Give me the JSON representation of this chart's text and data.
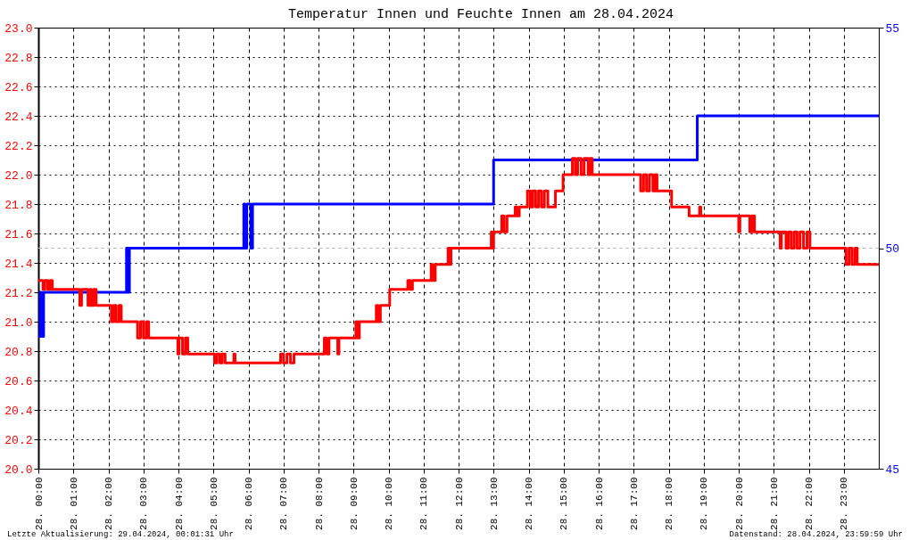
{
  "chart_data": {
    "type": "step",
    "title": "Temperatur Innen und Feuchte Innen am 28.04.2024",
    "series": [
      {
        "color": "#ff0000",
        "x": [
          "2024-04-28T00:00",
          "2024-04-28T00:08",
          "2024-04-28T00:11",
          "2024-04-28T00:16",
          "2024-04-28T00:20",
          "2024-04-28T00:24",
          "2024-04-28T01:11",
          "2024-04-28T01:14",
          "2024-04-28T01:25",
          "2024-04-28T01:28",
          "2024-04-28T01:31",
          "2024-04-28T01:35",
          "2024-04-28T01:39",
          "2024-04-28T02:05",
          "2024-04-28T02:09",
          "2024-04-28T02:13",
          "2024-04-28T02:18",
          "2024-04-28T02:22",
          "2024-04-28T02:50",
          "2024-04-28T02:55",
          "2024-04-28T03:00",
          "2024-04-28T03:05",
          "2024-04-28T03:09",
          "2024-04-28T03:59",
          "2024-04-28T04:01",
          "2024-04-28T04:07",
          "2024-04-28T04:12",
          "2024-04-28T04:16",
          "2024-04-28T05:02",
          "2024-04-28T05:06",
          "2024-04-28T05:11",
          "2024-04-28T05:15",
          "2024-04-28T05:20",
          "2024-04-28T05:35",
          "2024-04-28T05:37",
          "2024-04-28T06:55",
          "2024-04-28T07:00",
          "2024-04-28T07:06",
          "2024-04-28T07:12",
          "2024-04-28T07:18",
          "2024-04-28T08:10",
          "2024-04-28T08:14",
          "2024-04-28T08:18",
          "2024-04-28T08:33",
          "2024-04-28T08:35",
          "2024-04-28T09:04",
          "2024-04-28T09:07",
          "2024-04-28T09:10",
          "2024-04-28T09:39",
          "2024-04-28T09:42",
          "2024-04-28T09:46",
          "2024-04-28T10:02",
          "2024-04-28T10:33",
          "2024-04-28T10:37",
          "2024-04-28T10:41",
          "2024-04-28T11:13",
          "2024-04-28T11:16",
          "2024-04-28T11:20",
          "2024-04-28T11:42",
          "2024-04-28T11:45",
          "2024-04-28T11:47",
          "2024-04-28T12:56",
          "2024-04-28T12:58",
          "2024-04-28T13:00",
          "2024-04-28T13:14",
          "2024-04-28T13:18",
          "2024-04-28T13:23",
          "2024-04-28T13:37",
          "2024-04-28T13:40",
          "2024-04-28T13:44",
          "2024-04-28T13:58",
          "2024-04-28T14:03",
          "2024-04-28T14:07",
          "2024-04-28T14:12",
          "2024-04-28T14:17",
          "2024-04-28T14:22",
          "2024-04-28T14:27",
          "2024-04-28T14:33",
          "2024-04-28T14:46",
          "2024-04-28T14:59",
          "2024-04-28T15:15",
          "2024-04-28T15:20",
          "2024-04-28T15:24",
          "2024-04-28T15:30",
          "2024-04-28T15:35",
          "2024-04-28T15:42",
          "2024-04-28T15:45",
          "2024-04-28T15:49",
          "2024-04-28T17:12",
          "2024-04-28T17:17",
          "2024-04-28T17:22",
          "2024-04-28T17:27",
          "2024-04-28T17:33",
          "2024-04-28T17:37",
          "2024-04-28T17:40",
          "2024-04-28T18:05",
          "2024-04-28T18:35",
          "2024-04-28T18:53",
          "2024-04-28T18:55",
          "2024-04-28T20:00",
          "2024-04-28T20:02",
          "2024-04-28T20:19",
          "2024-04-28T20:23",
          "2024-04-28T20:27",
          "2024-04-28T21:11",
          "2024-04-28T21:13",
          "2024-04-28T21:21",
          "2024-04-28T21:25",
          "2024-04-28T21:30",
          "2024-04-28T21:35",
          "2024-04-28T21:40",
          "2024-04-28T21:45",
          "2024-04-28T21:51",
          "2024-04-28T21:57",
          "2024-04-28T22:02",
          "2024-04-28T23:04",
          "2024-04-28T23:09",
          "2024-04-28T23:14",
          "2024-04-28T23:19",
          "2024-04-28T23:23",
          "2024-04-29T00:00"
        ],
        "values": [
          21.28,
          21.22,
          21.28,
          21.22,
          21.28,
          21.22,
          21.11,
          21.22,
          21.11,
          21.22,
          21.11,
          21.22,
          21.11,
          21.0,
          21.11,
          21.0,
          21.11,
          21.0,
          20.89,
          21.0,
          20.89,
          21.0,
          20.89,
          20.78,
          20.89,
          20.78,
          20.89,
          20.78,
          20.72,
          20.78,
          20.72,
          20.78,
          20.72,
          20.78,
          20.72,
          20.78,
          20.72,
          20.78,
          20.72,
          20.78,
          20.89,
          20.78,
          20.89,
          20.78,
          20.89,
          21.0,
          20.89,
          21.0,
          21.11,
          21.0,
          21.11,
          21.22,
          21.28,
          21.22,
          21.28,
          21.39,
          21.28,
          21.39,
          21.5,
          21.39,
          21.5,
          21.61,
          21.5,
          21.61,
          21.72,
          21.61,
          21.72,
          21.78,
          21.72,
          21.78,
          21.89,
          21.78,
          21.89,
          21.78,
          21.89,
          21.78,
          21.89,
          21.78,
          21.89,
          22.0,
          22.11,
          22.0,
          22.11,
          22.0,
          22.11,
          22.0,
          22.11,
          22.0,
          21.89,
          22.0,
          21.89,
          22.0,
          21.89,
          22.0,
          21.89,
          21.78,
          21.72,
          21.78,
          21.72,
          21.61,
          21.72,
          21.61,
          21.72,
          21.61,
          21.5,
          21.61,
          21.5,
          21.61,
          21.5,
          21.61,
          21.5,
          21.61,
          21.5,
          21.61,
          21.5,
          21.39,
          21.5,
          21.39,
          21.5,
          21.39,
          21.39
        ]
      },
      {
        "color": "#0000ff",
        "axis": "y2",
        "x": [
          "2024-04-28T00:00",
          "2024-04-28T00:03",
          "2024-04-28T00:06",
          "2024-04-28T00:09",
          "2024-04-28T02:31",
          "2024-04-28T02:34",
          "2024-04-28T02:36",
          "2024-04-28T05:52",
          "2024-04-28T05:54",
          "2024-04-28T05:57",
          "2024-04-28T06:04",
          "2024-04-28T06:07",
          "2024-04-28T13:00",
          "2024-04-28T18:49",
          "2024-04-29T00:00"
        ],
        "values": [
          48,
          49,
          48,
          49,
          50,
          49,
          50,
          51,
          50,
          51,
          50,
          51,
          52,
          53,
          53
        ]
      }
    ],
    "xlim": [
      "2024-04-28T00:00",
      "2024-04-29T00:00"
    ],
    "xticks": [
      {
        "value": "2024-04-28T00:00",
        "label": "28. 00:00"
      },
      {
        "value": "2024-04-28T01:00",
        "label": "28. 01:00"
      },
      {
        "value": "2024-04-28T02:00",
        "label": "28. 02:00"
      },
      {
        "value": "2024-04-28T03:00",
        "label": "28. 03:00"
      },
      {
        "value": "2024-04-28T04:00",
        "label": "28. 04:00"
      },
      {
        "value": "2024-04-28T05:00",
        "label": "28. 05:00"
      },
      {
        "value": "2024-04-28T06:00",
        "label": "28. 06:00"
      },
      {
        "value": "2024-04-28T07:00",
        "label": "28. 07:00"
      },
      {
        "value": "2024-04-28T08:00",
        "label": "28. 08:00"
      },
      {
        "value": "2024-04-28T09:00",
        "label": "28. 09:00"
      },
      {
        "value": "2024-04-28T10:00",
        "label": "28. 10:00"
      },
      {
        "value": "2024-04-28T11:00",
        "label": "28. 11:00"
      },
      {
        "value": "2024-04-28T12:00",
        "label": "28. 12:00"
      },
      {
        "value": "2024-04-28T13:00",
        "label": "28. 13:00"
      },
      {
        "value": "2024-04-28T14:00",
        "label": "28. 14:00"
      },
      {
        "value": "2024-04-28T15:00",
        "label": "28. 15:00"
      },
      {
        "value": "2024-04-28T16:00",
        "label": "28. 16:00"
      },
      {
        "value": "2024-04-28T17:00",
        "label": "28. 17:00"
      },
      {
        "value": "2024-04-28T18:00",
        "label": "28. 18:00"
      },
      {
        "value": "2024-04-28T19:00",
        "label": "28. 19:00"
      },
      {
        "value": "2024-04-28T20:00",
        "label": "28. 20:00"
      },
      {
        "value": "2024-04-28T21:00",
        "label": "28. 21:00"
      },
      {
        "value": "2024-04-28T22:00",
        "label": "28. 22:00"
      },
      {
        "value": "2024-04-28T23:00",
        "label": "28. 23:00"
      }
    ],
    "ylim": [
      20,
      23
    ],
    "yticks": [
      {
        "value": 20,
        "label": "20.0"
      },
      20.2,
      20.4,
      20.6,
      20.8,
      {
        "value": 21,
        "label": "21.0"
      },
      21.2,
      21.4,
      21.6,
      21.8,
      {
        "value": 22,
        "label": "22.0"
      },
      22.2,
      22.4,
      22.6,
      22.8,
      {
        "value": 23,
        "label": "23.0"
      }
    ],
    "y2lim": [
      45,
      55
    ],
    "y2ticks": [
      45,
      50,
      55
    ],
    "ref_lines": [
      {
        "axis": "y2",
        "value": 50,
        "color": "#c0c0c0",
        "line_style": "dashed"
      }
    ],
    "grid": true,
    "line_style": "solid",
    "annotations": [
      "Letzte Aktualisierung: 29.04.2024, 00:01:31 Uhr",
      "Datenstand: 28.04.2024, 23:59:59 Uhr"
    ]
  }
}
